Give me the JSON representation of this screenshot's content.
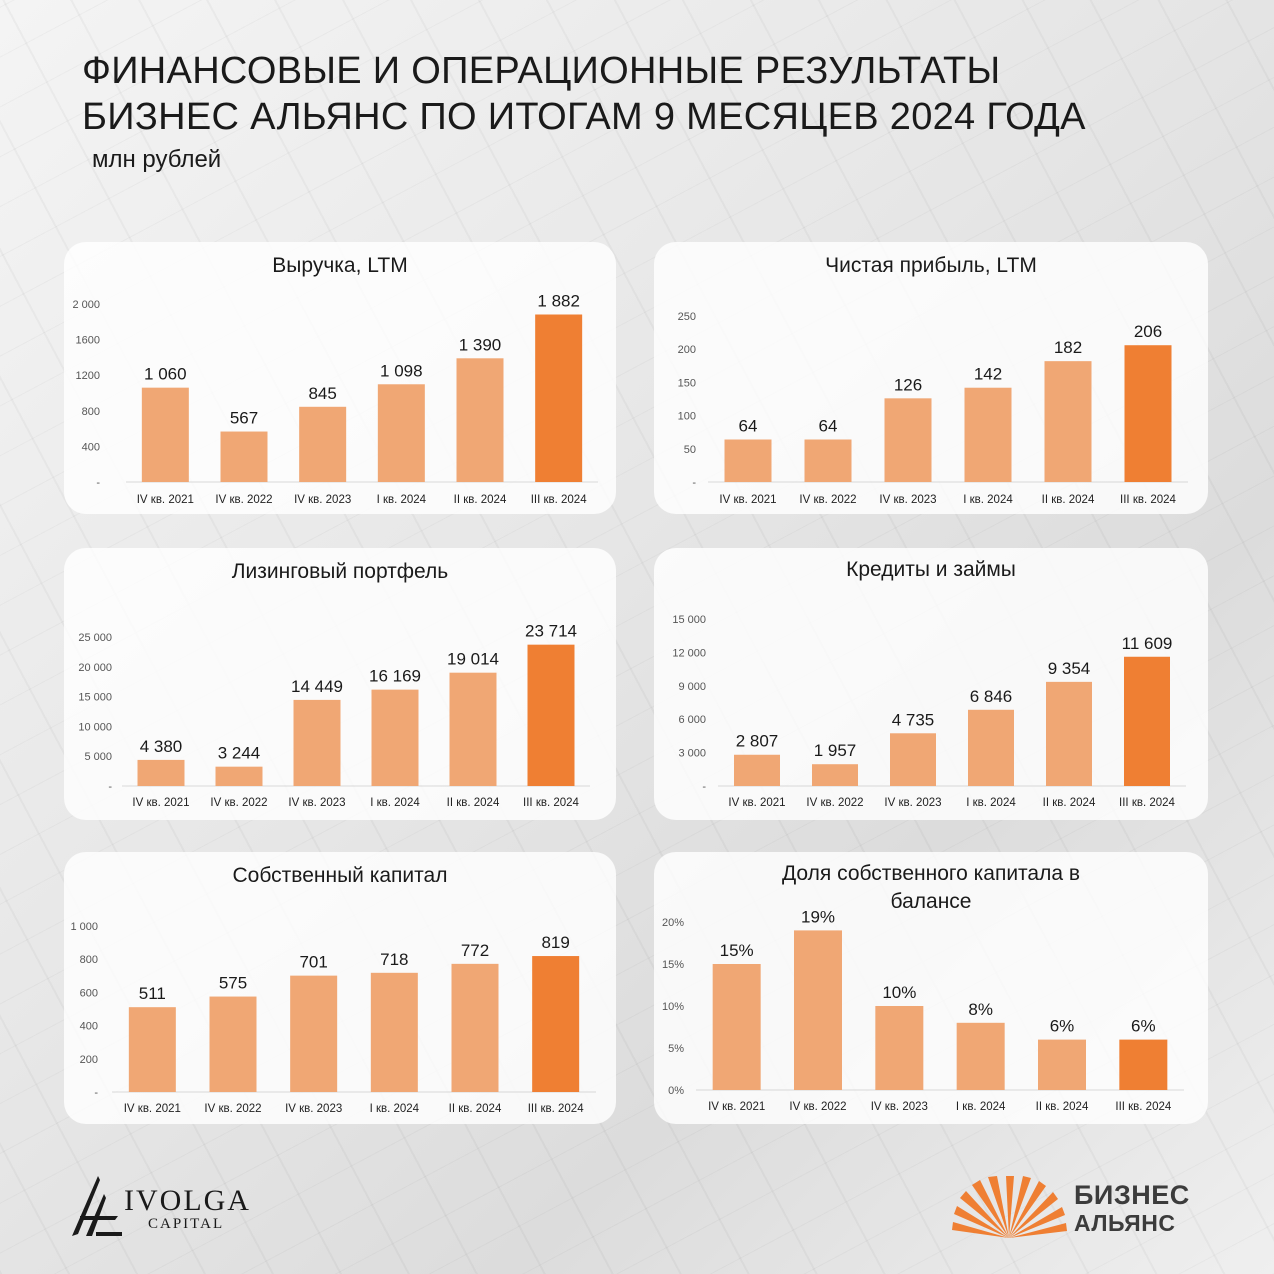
{
  "header": {
    "title_line1": "ФИНАНСОВЫЕ И ОПЕРАЦИОННЫЕ РЕЗУЛЬТАТЫ",
    "title_line2": "БИЗНЕС АЛЬЯНС ПО ИТОГАМ 9 МЕСЯЦЕВ 2024 ГОДА",
    "subtitle": "млн рублей"
  },
  "colors": {
    "bar": "#f0a774",
    "bar_highlight": "#ef7f33",
    "baseline": "#d8d8d8"
  },
  "logos": {
    "ivolga_name": "IVOLGA",
    "ivolga_sub": "CAPITAL",
    "ba_line1": "БИЗНЕС",
    "ba_line2": "АЛЬЯНС"
  },
  "chart_data": [
    {
      "type": "bar",
      "title": "Выручка, LTM",
      "categories": [
        "IV кв. 2021",
        "IV кв. 2022",
        "IV кв. 2023",
        "I кв. 2024",
        "II кв. 2024",
        "III кв. 2024"
      ],
      "values": [
        1060,
        567,
        845,
        1098,
        1390,
        1882
      ],
      "value_labels": [
        "1 060",
        "567",
        "845",
        "1 098",
        "1 390",
        "1 882"
      ],
      "yticks": [
        "-",
        "400",
        "800",
        "1200",
        "1600",
        "2 000"
      ],
      "ylim": [
        0,
        2000
      ],
      "highlight_index": 5,
      "grid": false
    },
    {
      "type": "bar",
      "title": "Чистая прибыль, LTM",
      "categories": [
        "IV кв. 2021",
        "IV кв. 2022",
        "IV кв. 2023",
        "I кв. 2024",
        "II кв. 2024",
        "III кв. 2024"
      ],
      "values": [
        64,
        64,
        126,
        142,
        182,
        206
      ],
      "value_labels": [
        "64",
        "64",
        "126",
        "142",
        "182",
        "206"
      ],
      "yticks": [
        "-",
        "50",
        "100",
        "150",
        "200",
        "250"
      ],
      "ylim": [
        0,
        250
      ],
      "highlight_index": 5,
      "grid": false
    },
    {
      "type": "bar",
      "title": "Лизинговый портфель",
      "categories": [
        "IV кв. 2021",
        "IV кв. 2022",
        "IV кв. 2023",
        "I кв. 2024",
        "II кв. 2024",
        "III кв. 2024"
      ],
      "values": [
        4380,
        3244,
        14449,
        16169,
        19014,
        23714
      ],
      "value_labels": [
        "4 380",
        "3 244",
        "14 449",
        "16 169",
        "19 014",
        "23 714"
      ],
      "yticks": [
        "-",
        "5 000",
        "10 000",
        "15 000",
        "20 000",
        "25 000"
      ],
      "ylim": [
        0,
        25000
      ],
      "highlight_index": 5,
      "grid": false
    },
    {
      "type": "bar",
      "title": "Кредиты и займы",
      "categories": [
        "IV кв. 2021",
        "IV кв. 2022",
        "IV кв. 2023",
        "I кв. 2024",
        "II кв. 2024",
        "III кв. 2024"
      ],
      "values": [
        2807,
        1957,
        4735,
        6846,
        9354,
        11609
      ],
      "value_labels": [
        "2 807",
        "1 957",
        "4 735",
        "6 846",
        "9 354",
        "11 609"
      ],
      "yticks": [
        "-",
        "3 000",
        "6 000",
        "9 000",
        "12 000",
        "15 000"
      ],
      "ylim": [
        0,
        15000
      ],
      "highlight_index": 5,
      "grid": false
    },
    {
      "type": "bar",
      "title": "Собственный капитал",
      "categories": [
        "IV кв. 2021",
        "IV кв. 2022",
        "IV кв. 2023",
        "I кв. 2024",
        "II кв. 2024",
        "III кв. 2024"
      ],
      "values": [
        511,
        575,
        701,
        718,
        772,
        819
      ],
      "value_labels": [
        "511",
        "575",
        "701",
        "718",
        "772",
        "819"
      ],
      "yticks": [
        "-",
        "200",
        "400",
        "600",
        "800",
        "1 000"
      ],
      "ylim": [
        0,
        1000
      ],
      "highlight_index": 5,
      "grid": false
    },
    {
      "type": "bar",
      "title": "Доля собственного капитала в балансе",
      "categories": [
        "IV кв. 2021",
        "IV кв. 2022",
        "IV кв. 2023",
        "I кв. 2024",
        "II кв. 2024",
        "III кв. 2024"
      ],
      "values": [
        15,
        19,
        10,
        8,
        6,
        6
      ],
      "value_labels": [
        "15%",
        "19%",
        "10%",
        "8%",
        "6%",
        "6%"
      ],
      "yticks": [
        "0%",
        "5%",
        "10%",
        "15%",
        "20%"
      ],
      "ylim": [
        0,
        20
      ],
      "highlight_index": 5,
      "grid": false
    }
  ]
}
